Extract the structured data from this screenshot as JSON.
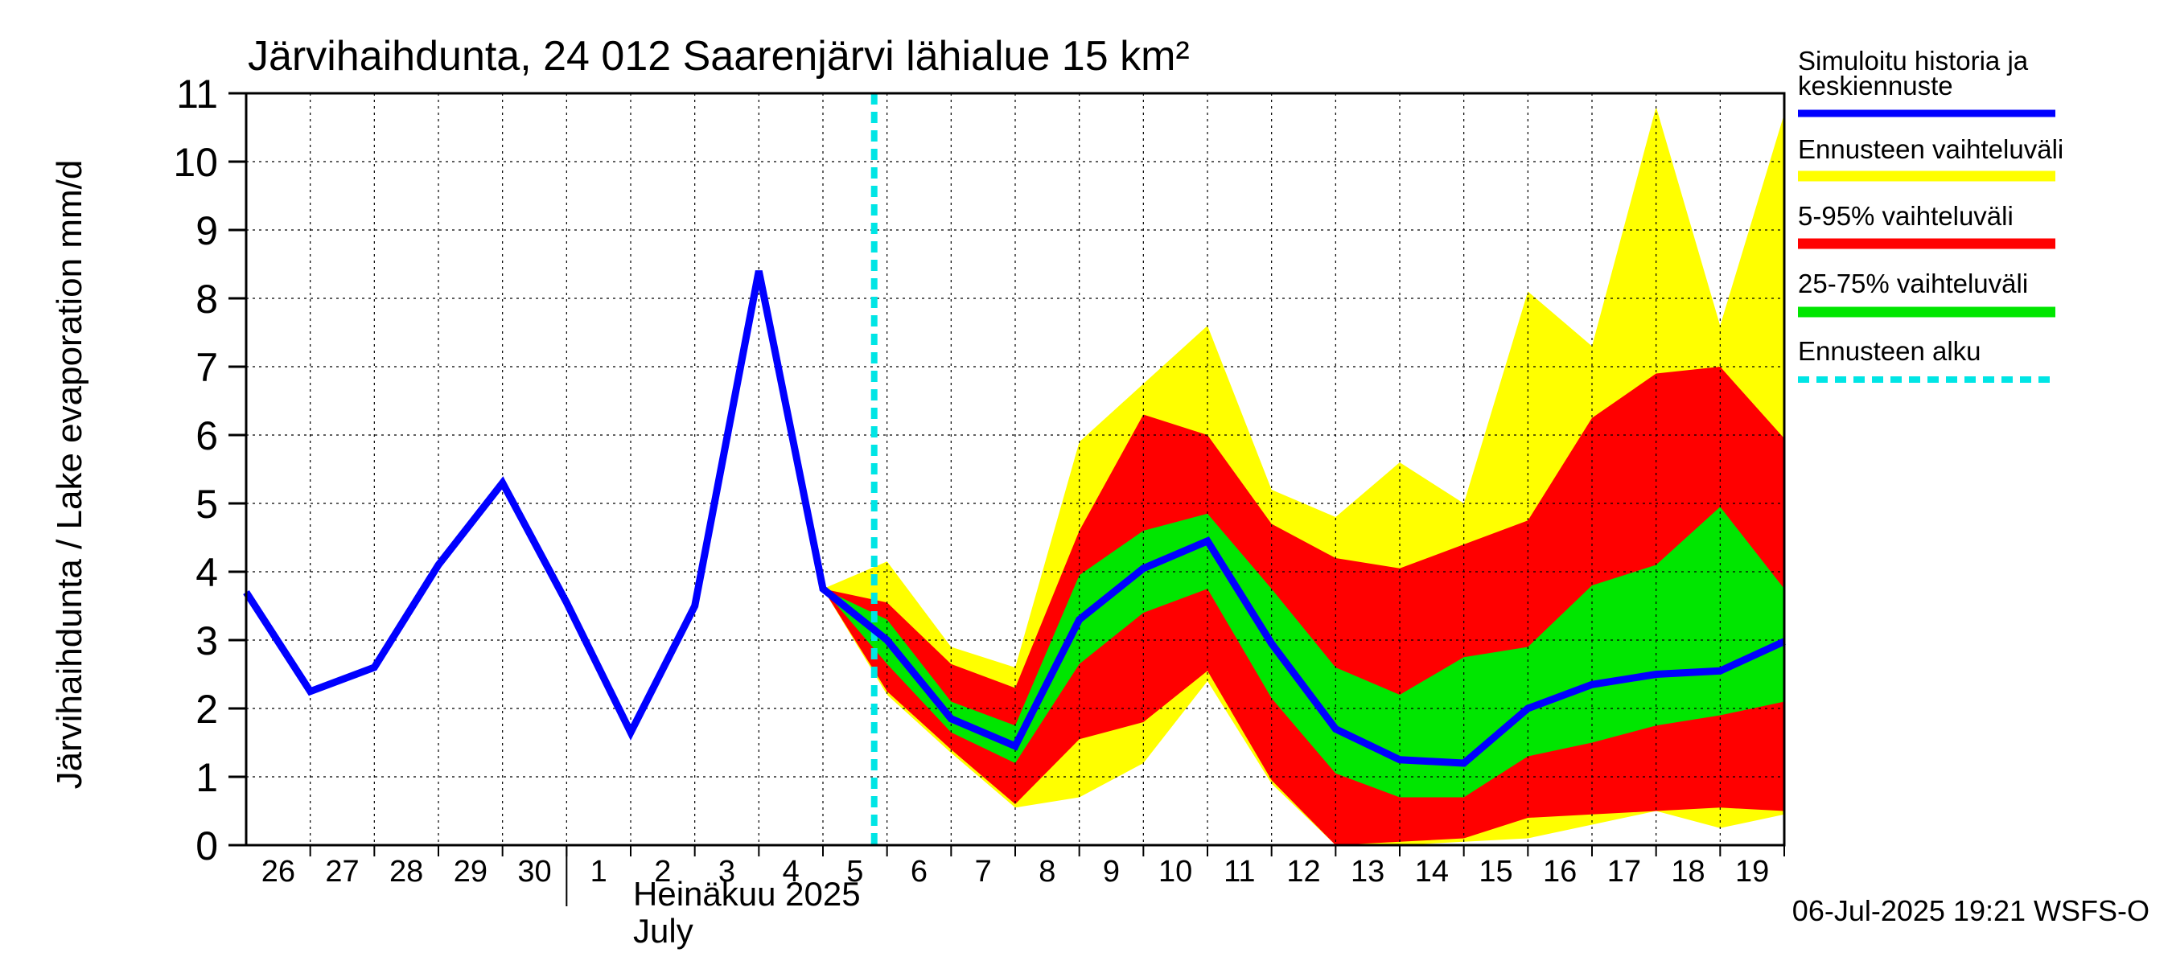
{
  "chart_data": {
    "type": "area",
    "title": "Järvihaihdunta, 24 012 Saarenjärvi lähialue 15 km²",
    "ylabel": "Järvihaihdunta / Lake evaporation   mm/d",
    "xlabel_month_fi": "Heinäkuu  2025",
    "xlabel_month_en": "July",
    "ylim": [
      0,
      11
    ],
    "yticks": [
      0,
      1,
      2,
      3,
      4,
      5,
      6,
      7,
      8,
      9,
      10,
      11
    ],
    "x_start": "2025-06-26",
    "x_end": "2025-07-20",
    "x_tick_labels": [
      "26",
      "27",
      "28",
      "29",
      "30",
      "1",
      "2",
      "3",
      "4",
      "5",
      "6",
      "7",
      "8",
      "9",
      "10",
      "11",
      "12",
      "13",
      "14",
      "15",
      "16",
      "17",
      "18",
      "19"
    ],
    "grid": true,
    "forecast_start": "2025-07-06",
    "timestamp": "06-Jul-2025 19:21 WSFS-O",
    "legend": [
      {
        "label": "Simuloitu historia ja keskiennuste",
        "color": "#0000ff",
        "style": "line"
      },
      {
        "label": "Ennusteen vaihteluväli",
        "color": "#ffff00",
        "style": "band"
      },
      {
        "label": "5-95% vaihteluväli",
        "color": "#ff0000",
        "style": "band"
      },
      {
        "label": "25-75% vaihteluväli",
        "color": "#00e600",
        "style": "band"
      },
      {
        "label": "Ennusteen alku",
        "color": "#00e5e5",
        "style": "dashed"
      }
    ],
    "series_dates": [
      "2025-06-26",
      "2025-06-27",
      "2025-06-28",
      "2025-06-29",
      "2025-06-30",
      "2025-07-01",
      "2025-07-02",
      "2025-07-03",
      "2025-07-04",
      "2025-07-05",
      "2025-07-06",
      "2025-07-07",
      "2025-07-08",
      "2025-07-09",
      "2025-07-10",
      "2025-07-11",
      "2025-07-12",
      "2025-07-13",
      "2025-07-14",
      "2025-07-15",
      "2025-07-16",
      "2025-07-17",
      "2025-07-18",
      "2025-07-19",
      "2025-07-20"
    ],
    "history": [
      3.7,
      2.25,
      2.6,
      4.1,
      5.3,
      3.55,
      1.65,
      3.5,
      8.4,
      3.75
    ],
    "forecast_dates": [
      "2025-07-05",
      "2025-07-06",
      "2025-07-07",
      "2025-07-08",
      "2025-07-09",
      "2025-07-10",
      "2025-07-11",
      "2025-07-12",
      "2025-07-13",
      "2025-07-14",
      "2025-07-15",
      "2025-07-16",
      "2025-07-17",
      "2025-07-18",
      "2025-07-19",
      "2025-07-20"
    ],
    "mean_forecast": [
      3.75,
      3.0,
      1.85,
      1.45,
      3.3,
      4.05,
      4.45,
      2.95,
      1.7,
      1.25,
      1.2,
      2.0,
      2.35,
      2.5,
      2.55,
      2.98
    ],
    "band_range": {
      "low": [
        3.75,
        2.2,
        1.35,
        0.55,
        0.7,
        1.2,
        2.4,
        0.9,
        0.0,
        0.0,
        0.05,
        0.1,
        0.3,
        0.5,
        0.25,
        0.45
      ],
      "high": [
        3.75,
        4.15,
        2.9,
        2.6,
        5.9,
        6.75,
        7.6,
        5.2,
        4.8,
        5.6,
        5.0,
        8.1,
        7.3,
        10.8,
        7.6,
        10.7
      ]
    },
    "band_5_95": {
      "low": [
        3.75,
        2.25,
        1.4,
        0.6,
        1.55,
        1.8,
        2.55,
        0.95,
        0.0,
        0.05,
        0.1,
        0.4,
        0.45,
        0.5,
        0.55,
        0.5
      ],
      "high": [
        3.75,
        3.55,
        2.65,
        2.3,
        4.6,
        6.3,
        6.0,
        4.7,
        4.2,
        4.05,
        4.4,
        4.75,
        6.25,
        6.9,
        7.0,
        5.95
      ]
    },
    "band_25_75": {
      "low": [
        3.75,
        2.65,
        1.65,
        1.2,
        2.65,
        3.4,
        3.75,
        2.15,
        1.05,
        0.7,
        0.7,
        1.3,
        1.5,
        1.75,
        1.9,
        2.1
      ],
      "high": [
        3.75,
        3.3,
        2.1,
        1.75,
        3.95,
        4.6,
        4.85,
        3.75,
        2.6,
        2.2,
        2.75,
        2.9,
        3.8,
        4.1,
        4.95,
        3.75
      ]
    }
  }
}
